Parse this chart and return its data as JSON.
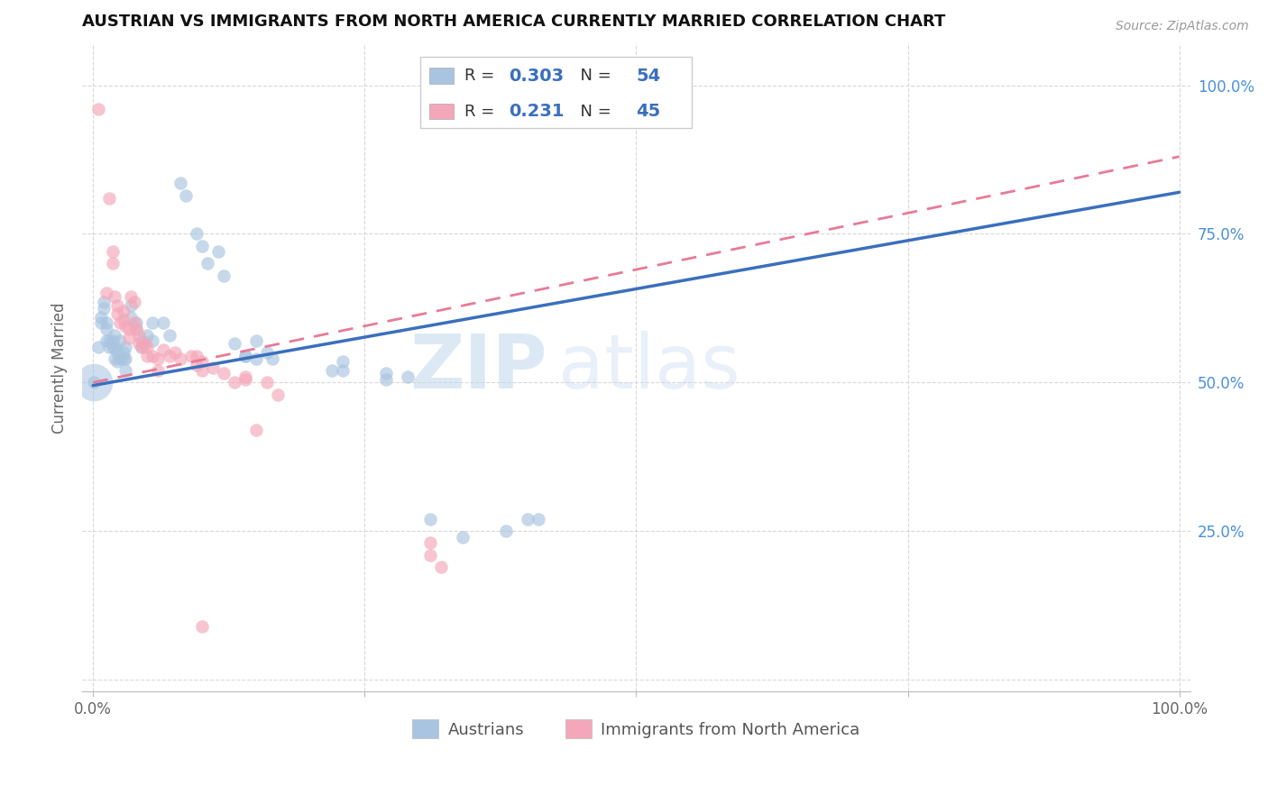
{
  "title": "AUSTRIAN VS IMMIGRANTS FROM NORTH AMERICA CURRENTLY MARRIED CORRELATION CHART",
  "source": "Source: ZipAtlas.com",
  "ylabel": "Currently Married",
  "legend_label_blue": "Austrians",
  "legend_label_pink": "Immigrants from North America",
  "blue_color": "#a8c4e0",
  "pink_color": "#f4a7b9",
  "blue_line_color": "#3a6fbd",
  "pink_line_color": "#e87a96",
  "watermark_zip": "ZIP",
  "watermark_atlas": "atlas",
  "blue_line": [
    [
      0.0,
      0.495
    ],
    [
      1.0,
      0.82
    ]
  ],
  "pink_line": [
    [
      0.0,
      0.5
    ],
    [
      1.0,
      0.88
    ]
  ],
  "blue_scatter": [
    [
      0.005,
      0.56
    ],
    [
      0.007,
      0.61
    ],
    [
      0.007,
      0.6
    ],
    [
      0.01,
      0.635
    ],
    [
      0.01,
      0.625
    ],
    [
      0.012,
      0.6
    ],
    [
      0.012,
      0.59
    ],
    [
      0.012,
      0.57
    ],
    [
      0.015,
      0.56
    ],
    [
      0.015,
      0.57
    ],
    [
      0.018,
      0.56
    ],
    [
      0.018,
      0.57
    ],
    [
      0.02,
      0.58
    ],
    [
      0.02,
      0.56
    ],
    [
      0.02,
      0.54
    ],
    [
      0.022,
      0.55
    ],
    [
      0.022,
      0.535
    ],
    [
      0.025,
      0.57
    ],
    [
      0.025,
      0.54
    ],
    [
      0.028,
      0.55
    ],
    [
      0.028,
      0.54
    ],
    [
      0.03,
      0.56
    ],
    [
      0.03,
      0.54
    ],
    [
      0.03,
      0.52
    ],
    [
      0.035,
      0.63
    ],
    [
      0.035,
      0.61
    ],
    [
      0.04,
      0.6
    ],
    [
      0.04,
      0.59
    ],
    [
      0.045,
      0.57
    ],
    [
      0.045,
      0.56
    ],
    [
      0.05,
      0.58
    ],
    [
      0.055,
      0.6
    ],
    [
      0.055,
      0.57
    ],
    [
      0.065,
      0.6
    ],
    [
      0.07,
      0.58
    ],
    [
      0.08,
      0.835
    ],
    [
      0.085,
      0.815
    ],
    [
      0.095,
      0.75
    ],
    [
      0.1,
      0.73
    ],
    [
      0.105,
      0.7
    ],
    [
      0.115,
      0.72
    ],
    [
      0.12,
      0.68
    ],
    [
      0.13,
      0.565
    ],
    [
      0.14,
      0.545
    ],
    [
      0.14,
      0.545
    ],
    [
      0.15,
      0.57
    ],
    [
      0.15,
      0.54
    ],
    [
      0.16,
      0.55
    ],
    [
      0.165,
      0.54
    ],
    [
      0.22,
      0.52
    ],
    [
      0.23,
      0.535
    ],
    [
      0.23,
      0.52
    ],
    [
      0.27,
      0.515
    ],
    [
      0.27,
      0.505
    ],
    [
      0.29,
      0.51
    ],
    [
      0.31,
      0.27
    ],
    [
      0.34,
      0.24
    ],
    [
      0.38,
      0.25
    ],
    [
      0.4,
      0.27
    ],
    [
      0.41,
      0.27
    ],
    [
      0.001,
      0.5
    ]
  ],
  "blue_scatter_large": [
    0.001,
    0.5
  ],
  "pink_scatter": [
    [
      0.005,
      0.96
    ],
    [
      0.012,
      0.65
    ],
    [
      0.015,
      0.81
    ],
    [
      0.018,
      0.72
    ],
    [
      0.018,
      0.7
    ],
    [
      0.02,
      0.645
    ],
    [
      0.022,
      0.63
    ],
    [
      0.022,
      0.615
    ],
    [
      0.025,
      0.6
    ],
    [
      0.028,
      0.62
    ],
    [
      0.028,
      0.605
    ],
    [
      0.03,
      0.595
    ],
    [
      0.033,
      0.59
    ],
    [
      0.033,
      0.575
    ],
    [
      0.035,
      0.645
    ],
    [
      0.038,
      0.635
    ],
    [
      0.038,
      0.6
    ],
    [
      0.04,
      0.59
    ],
    [
      0.042,
      0.58
    ],
    [
      0.042,
      0.565
    ],
    [
      0.045,
      0.56
    ],
    [
      0.048,
      0.565
    ],
    [
      0.05,
      0.56
    ],
    [
      0.05,
      0.545
    ],
    [
      0.055,
      0.545
    ],
    [
      0.06,
      0.54
    ],
    [
      0.06,
      0.52
    ],
    [
      0.065,
      0.555
    ],
    [
      0.07,
      0.545
    ],
    [
      0.075,
      0.55
    ],
    [
      0.08,
      0.54
    ],
    [
      0.09,
      0.545
    ],
    [
      0.095,
      0.545
    ],
    [
      0.095,
      0.53
    ],
    [
      0.1,
      0.535
    ],
    [
      0.1,
      0.52
    ],
    [
      0.11,
      0.525
    ],
    [
      0.12,
      0.515
    ],
    [
      0.13,
      0.5
    ],
    [
      0.14,
      0.51
    ],
    [
      0.14,
      0.505
    ],
    [
      0.15,
      0.42
    ],
    [
      0.16,
      0.5
    ],
    [
      0.17,
      0.48
    ],
    [
      0.31,
      0.23
    ],
    [
      0.31,
      0.21
    ],
    [
      0.32,
      0.19
    ],
    [
      0.1,
      0.09
    ]
  ],
  "xlim": [
    0.0,
    1.0
  ],
  "ylim": [
    0.0,
    1.05
  ],
  "yticks": [
    0.0,
    0.25,
    0.5,
    0.75,
    1.0
  ],
  "ytick_labels_right": [
    "",
    "25.0%",
    "50.0%",
    "75.0%",
    "100.0%"
  ],
  "xticks": [
    0.0,
    0.25,
    0.5,
    0.75,
    1.0
  ],
  "xtick_labels": [
    "0.0%",
    "",
    "",
    "",
    "100.0%"
  ],
  "right_tick_color": "#4a90d9",
  "title_fontsize": 13,
  "source_fontsize": 10,
  "axis_label_color": "#666666"
}
